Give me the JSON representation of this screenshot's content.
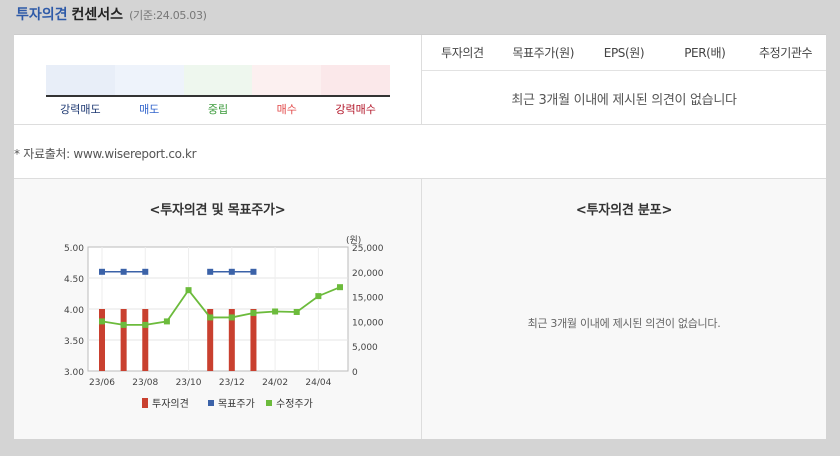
{
  "header": {
    "title": "투자의견",
    "subtitle": "컨센서스",
    "basis": "(기준:24.05.03)"
  },
  "gauge": {
    "segments": [
      {
        "label": "강력매도",
        "color": "#e8eef8",
        "label_color": "#1f3a73"
      },
      {
        "label": "매도",
        "color": "#eef3fb",
        "label_color": "#3366cc"
      },
      {
        "label": "중립",
        "color": "#eef7ee",
        "label_color": "#3a9a3a"
      },
      {
        "label": "매수",
        "color": "#fcf0f0",
        "label_color": "#e24a4a"
      },
      {
        "label": "강력매수",
        "color": "#fbe8ea",
        "label_color": "#b3172a"
      }
    ]
  },
  "table": {
    "columns": [
      "투자의견",
      "목표주가(원)",
      "EPS(원)",
      "PER(배)",
      "추정기관수"
    ],
    "empty_message": "최근 3개월 이내에 제시된 의견이 없습니다"
  },
  "source_note": "* 자료출처: www.wisereport.co.kr",
  "left_chart": {
    "title": "<투자의견 및 목표주가>"
  },
  "right_chart": {
    "title": "<투자의견 분포>",
    "empty_message": "최근 3개월 이내에 제시된 의견이 없습니다."
  },
  "colors": {
    "opinion_bar": "#c9402f",
    "target_price": "#3b62a8",
    "adjusted_price": "#6cbb3c"
  },
  "chart_data": {
    "type": "bar",
    "x": [
      "23/06",
      "23/07",
      "23/08",
      "23/09",
      "23/10",
      "23/11",
      "23/12",
      "24/01",
      "24/02",
      "24/03",
      "24/04",
      "24/05"
    ],
    "xticks": [
      "23/06",
      "23/08",
      "23/10",
      "23/12",
      "24/02",
      "24/04"
    ],
    "y_left_ticks": [
      "5.00",
      "4.50",
      "4.00",
      "3.50",
      "3.00"
    ],
    "y_right_ticks": [
      "25,000",
      "20,000",
      "15,000",
      "10,000",
      "5,000",
      "0"
    ],
    "y_right_unit": "(원)",
    "ylim_left": [
      3.0,
      5.0
    ],
    "ylim_right": [
      0,
      25000
    ],
    "series": [
      {
        "name": "투자의견",
        "type": "bar",
        "axis": "left",
        "values": [
          4.0,
          4.0,
          4.0,
          null,
          null,
          4.0,
          4.0,
          4.0,
          null,
          null,
          null,
          null
        ]
      },
      {
        "name": "목표주가",
        "type": "scatter",
        "axis": "right",
        "values": [
          20000,
          20000,
          20000,
          null,
          null,
          20000,
          20000,
          20000,
          null,
          null,
          null,
          null
        ]
      },
      {
        "name": "수정주가",
        "type": "line",
        "axis": "right",
        "values": [
          10000,
          9300,
          9300,
          10000,
          16300,
          10800,
          10800,
          11700,
          12000,
          11900,
          15100,
          16900
        ]
      }
    ],
    "grid": true,
    "legend": "bottom"
  }
}
